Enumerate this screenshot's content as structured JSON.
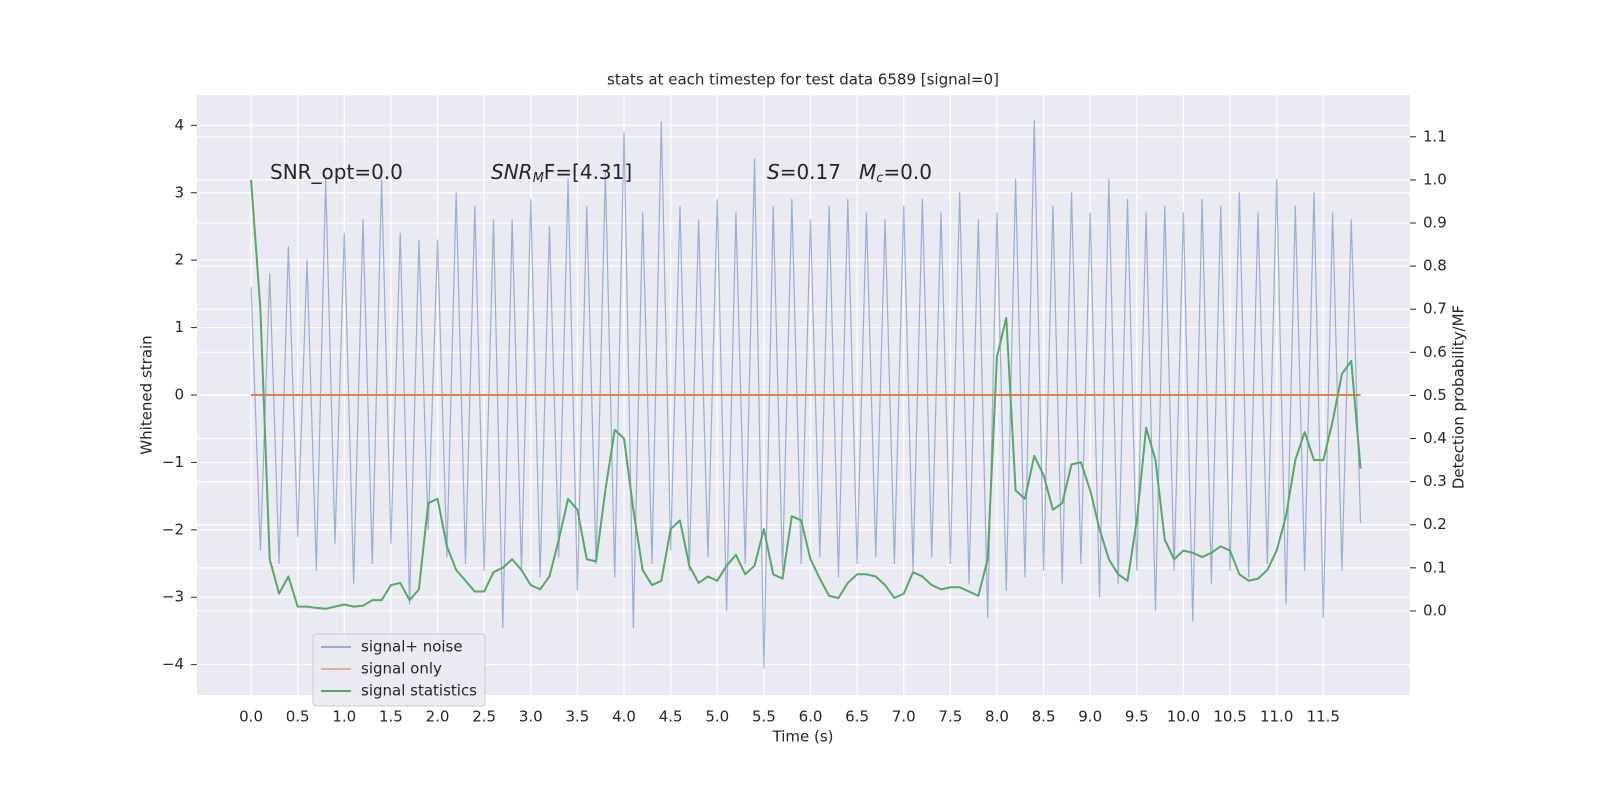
{
  "chart_data": {
    "type": "line",
    "title": "stats at each timestep for test data 6589 [signal=0]",
    "x_label": "Time (s)",
    "y_label": "Whitened strain",
    "y2_label": "Detection probability/MF",
    "annotations": [
      {
        "parts": [
          "SNR_opt=0.0"
        ]
      },
      {
        "parts": [
          "SNR",
          "M",
          "F=[4.31]"
        ]
      },
      {
        "parts": [
          "S",
          "=0.17",
          "M",
          "c",
          "=0.0"
        ]
      }
    ],
    "xlim": [
      -0.58,
      12.43
    ],
    "ylim": [
      -4.45,
      4.45
    ],
    "y2lim": [
      -0.195,
      1.197
    ],
    "xticks": [
      {
        "value": 0,
        "label": "0.0"
      },
      0.5,
      {
        "value": 1,
        "label": "1.0"
      },
      1.5,
      {
        "value": 2,
        "label": "2.0"
      },
      2.5,
      {
        "value": 3,
        "label": "3.0"
      },
      3.5,
      {
        "value": 4,
        "label": "4.0"
      },
      4.5,
      {
        "value": 5,
        "label": "5.0"
      },
      5.5,
      {
        "value": 6,
        "label": "6.0"
      },
      6.5,
      {
        "value": 7,
        "label": "7.0"
      },
      7.5,
      {
        "value": 8,
        "label": "8.0"
      },
      8.5,
      {
        "value": 9,
        "label": "9.0"
      },
      9.5,
      {
        "value": 10,
        "label": "10.0"
      },
      10.5,
      {
        "value": 11,
        "label": "11.0"
      },
      11.5
    ],
    "yticks": [
      {
        "value": -4,
        "label": "−4"
      },
      {
        "value": -3,
        "label": "−3"
      },
      {
        "value": -2,
        "label": "−2"
      },
      {
        "value": -1,
        "label": "−1"
      },
      0,
      1,
      2,
      3,
      4
    ],
    "y2ticks": [
      {
        "value": 0,
        "label": "0.0"
      },
      0.1,
      0.2,
      0.3,
      0.4,
      0.5,
      0.6,
      0.7,
      0.8,
      0.9,
      {
        "value": 1,
        "label": "1.0"
      },
      1.1
    ],
    "grid": true,
    "legend": "lower left",
    "x": [
      0.0,
      0.1,
      0.2,
      0.3,
      0.4,
      0.5,
      0.6,
      0.7,
      0.8,
      0.9,
      1.0,
      1.1,
      1.2,
      1.3,
      1.4,
      1.5,
      1.6,
      1.7,
      1.8,
      1.9,
      2.0,
      2.1,
      2.2,
      2.3,
      2.4,
      2.5,
      2.6,
      2.7,
      2.8,
      2.9,
      3.0,
      3.1,
      3.2,
      3.3,
      3.4,
      3.5,
      3.6,
      3.7,
      3.8,
      3.9,
      4.0,
      4.1,
      4.2,
      4.3,
      4.4,
      4.5,
      4.6,
      4.7,
      4.8,
      4.9,
      5.0,
      5.1,
      5.2,
      5.3,
      5.4,
      5.5,
      5.6,
      5.7,
      5.8,
      5.9,
      6.0,
      6.1,
      6.2,
      6.3,
      6.4,
      6.5,
      6.6,
      6.7,
      6.8,
      6.9,
      7.0,
      7.1,
      7.2,
      7.3,
      7.4,
      7.5,
      7.6,
      7.7,
      7.8,
      7.9,
      8.0,
      8.1,
      8.2,
      8.3,
      8.4,
      8.5,
      8.6,
      8.7,
      8.8,
      8.9,
      9.0,
      9.1,
      9.2,
      9.3,
      9.4,
      9.5,
      9.6,
      9.7,
      9.8,
      9.9,
      10.0,
      10.1,
      10.2,
      10.3,
      10.4,
      10.5,
      10.6,
      10.7,
      10.8,
      10.9,
      11.0,
      11.1,
      11.2,
      11.3,
      11.4,
      11.5,
      11.6,
      11.7,
      11.8,
      11.9
    ],
    "series": [
      {
        "name": "signal+ noise",
        "color": "#4c72b0",
        "values": [
          1.6,
          -2.3,
          1.8,
          -2.5,
          2.2,
          -2.1,
          2.0,
          -2.6,
          3.2,
          -2.2,
          2.4,
          -2.8,
          2.6,
          -2.5,
          3.2,
          -2.2,
          2.4,
          -3.1,
          2.3,
          -2.0,
          2.3,
          -2.4,
          3.0,
          -2.5,
          2.8,
          -2.6,
          2.6,
          -3.45,
          2.6,
          -2.6,
          2.9,
          -2.7,
          2.5,
          -2.4,
          3.2,
          -2.9,
          2.8,
          -2.5,
          3.3,
          -2.7,
          3.9,
          -3.45,
          2.7,
          -2.5,
          4.05,
          -2.3,
          2.8,
          -2.6,
          2.6,
          -2.4,
          2.9,
          -3.2,
          2.7,
          -2.5,
          3.5,
          -4.05,
          2.8,
          -2.6,
          2.9,
          -2.5,
          2.6,
          -2.4,
          2.8,
          -2.7,
          2.9,
          -2.5,
          2.7,
          -2.4,
          2.6,
          -2.5,
          2.8,
          -2.6,
          2.9,
          -2.4,
          2.7,
          -2.5,
          3.0,
          -2.8,
          2.6,
          -3.3,
          2.7,
          -2.9,
          3.2,
          -2.7,
          4.08,
          -2.6,
          2.8,
          -2.8,
          3.0,
          -2.5,
          2.7,
          -3.0,
          3.2,
          -2.8,
          2.9,
          -2.6,
          2.7,
          -3.2,
          2.8,
          -2.6,
          2.7,
          -3.35,
          2.9,
          -2.8,
          2.8,
          -2.6,
          3.0,
          -2.7,
          2.7,
          -2.5,
          3.2,
          -3.1,
          2.8,
          -2.6,
          3.0,
          -3.3,
          2.7,
          -2.6,
          2.6,
          -1.9
        ]
      },
      {
        "name": "signal only",
        "color": "#dd8452",
        "x": [
          0.0,
          11.9
        ],
        "values": [
          0,
          0
        ]
      },
      {
        "name": "signal statistics",
        "color": "#55a868",
        "axis": "y2",
        "values": [
          1.0,
          0.7,
          0.12,
          0.04,
          0.08,
          0.01,
          0.01,
          0.007,
          0.005,
          0.01,
          0.015,
          0.01,
          0.012,
          0.025,
          0.025,
          0.06,
          0.065,
          0.025,
          0.05,
          0.25,
          0.26,
          0.15,
          0.095,
          0.07,
          0.045,
          0.045,
          0.09,
          0.1,
          0.12,
          0.095,
          0.06,
          0.05,
          0.08,
          0.165,
          0.26,
          0.235,
          0.12,
          0.115,
          0.28,
          0.42,
          0.4,
          0.235,
          0.095,
          0.06,
          0.07,
          0.19,
          0.21,
          0.105,
          0.065,
          0.08,
          0.07,
          0.105,
          0.13,
          0.085,
          0.105,
          0.19,
          0.085,
          0.075,
          0.22,
          0.21,
          0.12,
          0.075,
          0.035,
          0.03,
          0.065,
          0.085,
          0.085,
          0.08,
          0.06,
          0.03,
          0.04,
          0.09,
          0.08,
          0.06,
          0.05,
          0.055,
          0.055,
          0.045,
          0.035,
          0.12,
          0.59,
          0.68,
          0.28,
          0.26,
          0.36,
          0.315,
          0.235,
          0.25,
          0.34,
          0.345,
          0.28,
          0.19,
          0.12,
          0.085,
          0.07,
          0.21,
          0.425,
          0.35,
          0.165,
          0.12,
          0.14,
          0.135,
          0.125,
          0.135,
          0.15,
          0.14,
          0.085,
          0.07,
          0.075,
          0.095,
          0.14,
          0.22,
          0.35,
          0.415,
          0.35,
          0.35,
          0.44,
          0.55,
          0.58,
          0.33
        ]
      }
    ]
  }
}
